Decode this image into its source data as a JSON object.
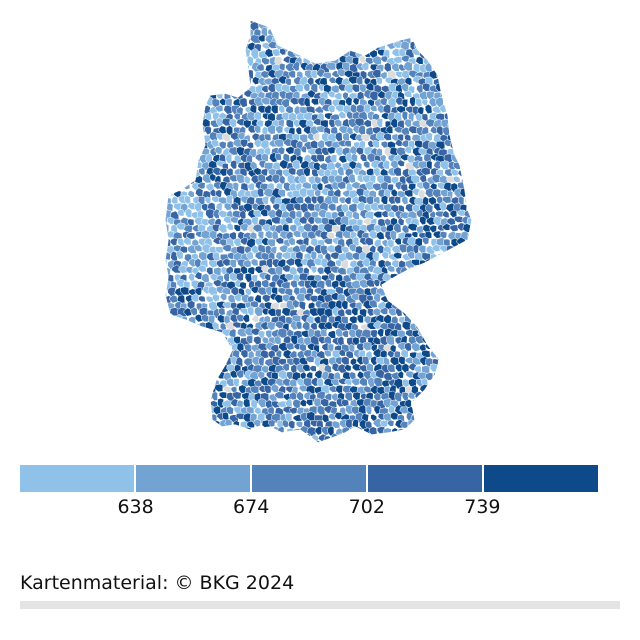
{
  "map": {
    "region": "Deutschland",
    "unit": "Gemeinden",
    "colors": [
      "#90c2e9",
      "#73a3d3",
      "#5482ba",
      "#3765a3",
      "#0e4a8a"
    ],
    "no_data_color": "#dcdcdc",
    "border_color": "#ffffff"
  },
  "legend": {
    "colors": [
      "#90c2e9",
      "#73a3d3",
      "#5482ba",
      "#3765a3",
      "#0e4a8a"
    ],
    "breaks": [
      "638",
      "674",
      "702",
      "739"
    ]
  },
  "source": {
    "text": "Kartenmaterial: © BKG 2024"
  }
}
